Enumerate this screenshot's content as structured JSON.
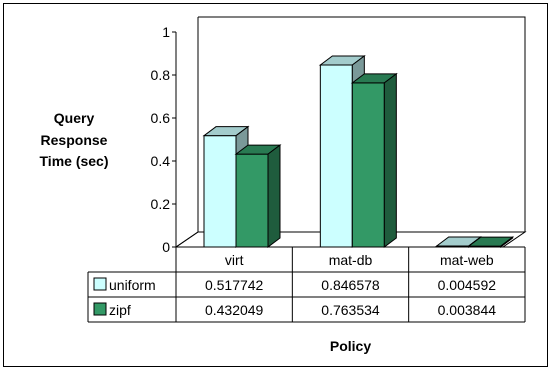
{
  "chart_data": {
    "type": "bar",
    "style": "3d-clustered-column-with-data-table",
    "categories": [
      "virt",
      "mat-db",
      "mat-web"
    ],
    "series": [
      {
        "name": "uniform",
        "values": [
          0.517742,
          0.846578,
          0.004592
        ],
        "color": "#ccffff",
        "text_values": [
          "0.517742",
          "0.846578",
          "0.004592"
        ]
      },
      {
        "name": "zipf",
        "values": [
          0.432049,
          0.763534,
          0.003844
        ],
        "color": "#339966",
        "text_values": [
          "0.432049",
          "0.763534",
          "0.003844"
        ]
      }
    ],
    "ylabel": "Query Response Time (sec)",
    "ylabel_lines": [
      "Query",
      "Response",
      "Time (sec)"
    ],
    "xlabel": "Policy",
    "ylim": [
      0,
      1
    ],
    "yticks": [
      "0",
      "0.2",
      "0.4",
      "0.6",
      "0.8",
      "1"
    ],
    "grid": false,
    "legend": "in-data-table"
  }
}
